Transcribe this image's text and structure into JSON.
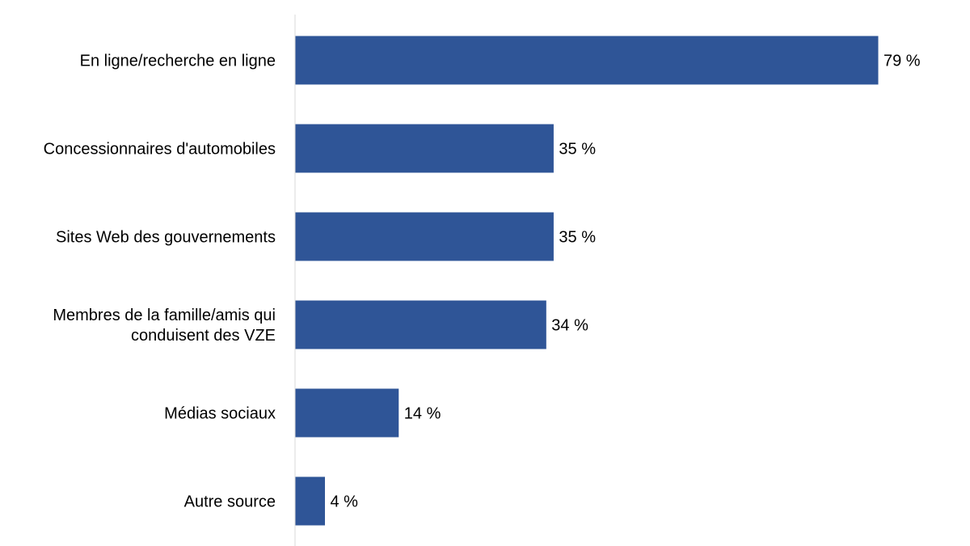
{
  "chart_data": {
    "type": "bar",
    "orientation": "horizontal",
    "categories": [
      [
        "En ligne/recherche en ligne"
      ],
      [
        "Concessionnaires d'automobiles"
      ],
      [
        "Sites Web des gouvernements"
      ],
      [
        "Membres de la famille/amis qui",
        "conduisent des VZE"
      ],
      [
        "Médias sociaux"
      ],
      [
        "Autre source"
      ]
    ],
    "values": [
      79,
      35,
      35,
      34,
      14,
      4
    ],
    "data_labels": [
      "79 %",
      "35 %",
      "35 %",
      "34 %",
      "14 %",
      "4 %"
    ],
    "unit": "%",
    "xlim": [
      0,
      100
    ],
    "grid": false,
    "legend": "none",
    "bar_color": "#2F5597",
    "axis_color": "#D9D9D9"
  }
}
